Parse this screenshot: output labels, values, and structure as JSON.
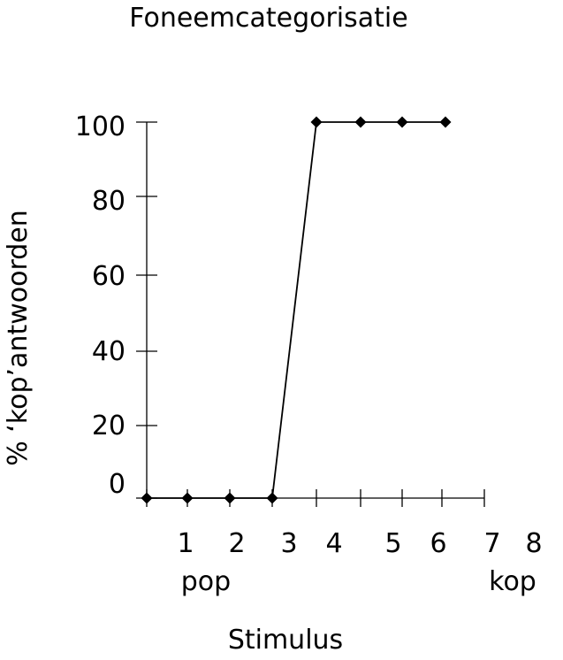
{
  "chart_data": {
    "type": "line",
    "title": "Foneemcategorisatie",
    "xlabel": "Stimulus",
    "ylabel": "% ‘kop’antwoorden",
    "yticks": [
      "0",
      "20",
      "40",
      "60",
      "80",
      "100"
    ],
    "ylim": [
      0,
      100
    ],
    "xticks": [
      "1",
      "2",
      "3",
      "4",
      "5",
      "6",
      "7",
      "8"
    ],
    "endpoint_labels": {
      "left": "pop",
      "right": "kop"
    },
    "grid": false,
    "legend": "none",
    "series": [
      {
        "x": [
          1,
          2,
          3,
          4,
          5,
          6,
          7,
          8
        ],
        "values": [
          0,
          0,
          0,
          0,
          100,
          100,
          100,
          100
        ],
        "color": "#000000",
        "marker": "diamond"
      }
    ]
  }
}
